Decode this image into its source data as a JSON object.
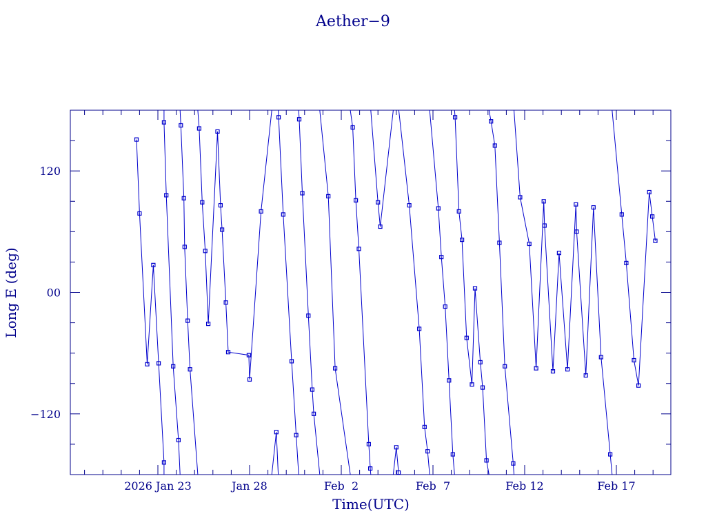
{
  "chart_data": {
    "type": "line",
    "title": "Aether−9",
    "xlabel": "Time(UTC)",
    "ylabel": "Long E (deg)",
    "ylim": [
      -180,
      180
    ],
    "xlim_days_from": "2026-01-18",
    "xticks": [
      {
        "date": "2026-01-23",
        "label": "2026 Jan 23"
      },
      {
        "date": "2026-01-28",
        "label": "Jan 28"
      },
      {
        "date": "2026-02-02",
        "label": "Feb  2"
      },
      {
        "date": "2026-02-07",
        "label": "Feb  7"
      },
      {
        "date": "2026-02-12",
        "label": "Feb 12"
      },
      {
        "date": "2026-02-17",
        "label": "Feb 17"
      }
    ],
    "yticks": [
      {
        "value": 120,
        "label": "120"
      },
      {
        "value": 0,
        "label": "00"
      },
      {
        "value": -120,
        "label": "−120"
      }
    ],
    "grid": false,
    "color": "#0000cc",
    "series": [
      {
        "name": "",
        "points": [
          [
            "2026-01-21T20:00",
            151
          ],
          [
            "2026-01-22T00:00",
            78
          ],
          [
            "2026-01-22T10:00",
            -71
          ],
          [
            "2026-01-22T18:00",
            27
          ],
          [
            "2026-01-23T01:00",
            -70
          ],
          [
            "2026-01-23T08:00",
            -168
          ],
          [
            "2026-01-23T08:00",
            168
          ],
          [
            "2026-01-23T11:00",
            96
          ],
          [
            "2026-01-23T20:00",
            -73
          ],
          [
            "2026-01-24T03:00",
            -146
          ],
          [
            "2026-01-24T06:00",
            165
          ],
          [
            "2026-01-24T10:00",
            93
          ],
          [
            "2026-01-24T11:00",
            45
          ],
          [
            "2026-01-24T15:00",
            -28
          ],
          [
            "2026-01-24T18:00",
            -76
          ],
          [
            "2026-01-25T06:00",
            162
          ],
          [
            "2026-01-25T10:00",
            89
          ],
          [
            "2026-01-25T14:00",
            41
          ],
          [
            "2026-01-25T18:00",
            -31
          ],
          [
            "2026-01-26T06:00",
            159
          ],
          [
            "2026-01-26T10:00",
            86
          ],
          [
            "2026-01-26T12:00",
            62
          ],
          [
            "2026-01-26T17:00",
            -10
          ],
          [
            "2026-01-26T20:00",
            -59
          ],
          [
            "2026-01-27T23:00",
            -62
          ],
          [
            "2026-01-28T00:00",
            -86
          ],
          [
            "2026-01-28T15:00",
            80
          ],
          [
            "2026-01-29T11:00",
            -138
          ],
          [
            "2026-01-29T14:00",
            173
          ],
          [
            "2026-01-29T20:00",
            77
          ],
          [
            "2026-01-30T07:00",
            -68
          ],
          [
            "2026-01-30T13:00",
            -141
          ],
          [
            "2026-01-30T17:00",
            171
          ],
          [
            "2026-01-30T21:00",
            98
          ],
          [
            "2026-01-31T05:00",
            -23
          ],
          [
            "2026-01-31T10:00",
            -96
          ],
          [
            "2026-01-31T12:00",
            -120
          ],
          [
            "2026-02-01T07:00",
            95
          ],
          [
            "2026-02-01T16:00",
            -75
          ],
          [
            "2026-02-02T15:00",
            163
          ],
          [
            "2026-02-02T19:00",
            91
          ],
          [
            "2026-02-02T23:00",
            43
          ],
          [
            "2026-02-03T12:00",
            -150
          ],
          [
            "2026-02-03T14:00",
            -174
          ],
          [
            "2026-02-04T00:00",
            89
          ],
          [
            "2026-02-04T03:00",
            65
          ],
          [
            "2026-02-05T00:00",
            -153
          ],
          [
            "2026-02-05T03:00",
            -178
          ],
          [
            "2026-02-05T17:00",
            86
          ],
          [
            "2026-02-06T06:00",
            -36
          ],
          [
            "2026-02-06T13:00",
            -133
          ],
          [
            "2026-02-06T17:00",
            -157
          ],
          [
            "2026-02-07T07:00",
            83
          ],
          [
            "2026-02-07T11:00",
            35
          ],
          [
            "2026-02-07T16:00",
            -14
          ],
          [
            "2026-02-07T21:00",
            -87
          ],
          [
            "2026-02-08T02:00",
            -160
          ],
          [
            "2026-02-08T05:00",
            173
          ],
          [
            "2026-02-08T10:00",
            80
          ],
          [
            "2026-02-08T14:00",
            52
          ],
          [
            "2026-02-08T20:00",
            -45
          ],
          [
            "2026-02-09T03:00",
            -91
          ],
          [
            "2026-02-09T07:00",
            4
          ],
          [
            "2026-02-09T14:00",
            -69
          ],
          [
            "2026-02-09T17:00",
            -94
          ],
          [
            "2026-02-09T22:00",
            -166
          ],
          [
            "2026-02-10T04:00",
            169
          ],
          [
            "2026-02-10T09:00",
            145
          ],
          [
            "2026-02-10T15:00",
            49
          ],
          [
            "2026-02-10T22:00",
            -73
          ],
          [
            "2026-02-11T09:00",
            -169
          ],
          [
            "2026-02-11T18:00",
            94
          ],
          [
            "2026-02-12T06:00",
            48
          ],
          [
            "2026-02-12T15:00",
            -75
          ],
          [
            "2026-02-13T01:00",
            90
          ],
          [
            "2026-02-13T02:00",
            66
          ],
          [
            "2026-02-13T13:00",
            -78
          ],
          [
            "2026-02-13T21:00",
            39
          ],
          [
            "2026-02-14T08:00",
            -76
          ],
          [
            "2026-02-14T19:00",
            87
          ],
          [
            "2026-02-14T20:00",
            60
          ],
          [
            "2026-02-15T08:00",
            -82
          ],
          [
            "2026-02-15T18:00",
            84
          ],
          [
            "2026-02-16T04:00",
            -64
          ],
          [
            "2026-02-16T16:00",
            -160
          ],
          [
            "2026-02-17T07:00",
            77
          ],
          [
            "2026-02-17T13:00",
            29
          ],
          [
            "2026-02-17T23:00",
            -67
          ],
          [
            "2026-02-18T05:00",
            -92
          ],
          [
            "2026-02-18T19:00",
            99
          ],
          [
            "2026-02-18T23:00",
            75
          ],
          [
            "2026-02-19T03:00",
            51
          ]
        ]
      }
    ]
  }
}
